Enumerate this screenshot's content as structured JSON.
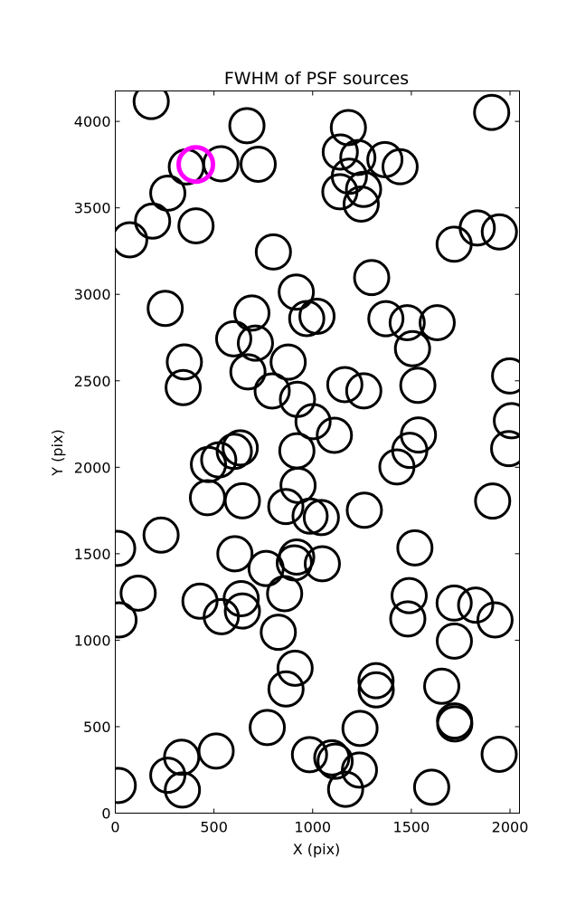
{
  "chart_data": {
    "type": "scatter",
    "title": "FWHM of PSF sources",
    "xlabel": "X (pix)",
    "ylabel": "Y (pix)",
    "xlim": [
      0,
      2048
    ],
    "ylim": [
      0,
      4176
    ],
    "xticks": [
      0,
      500,
      1000,
      1500,
      2000
    ],
    "yticks": [
      0,
      500,
      1000,
      1500,
      2000,
      2500,
      3000,
      3500,
      4000
    ],
    "marker": "open-circle",
    "marker_radius_data_units": 87,
    "series": [
      {
        "color": "#000000",
        "points": [
          [
            182,
            4115
          ],
          [
            667,
            3975
          ],
          [
            1181,
            3964
          ],
          [
            1907,
            4052
          ],
          [
            1140,
            3823
          ],
          [
            1229,
            3791
          ],
          [
            1366,
            3779
          ],
          [
            1443,
            3738
          ],
          [
            360,
            3737
          ],
          [
            535,
            3755
          ],
          [
            724,
            3752
          ],
          [
            1186,
            3683
          ],
          [
            1258,
            3607
          ],
          [
            1138,
            3593
          ],
          [
            1246,
            3522
          ],
          [
            266,
            3585
          ],
          [
            189,
            3424
          ],
          [
            409,
            3396
          ],
          [
            73,
            3315
          ],
          [
            801,
            3245
          ],
          [
            1834,
            3384
          ],
          [
            1946,
            3361
          ],
          [
            1717,
            3290
          ],
          [
            1299,
            3097
          ],
          [
            917,
            3013
          ],
          [
            253,
            2919
          ],
          [
            692,
            2892
          ],
          [
            970,
            2860
          ],
          [
            1022,
            2873
          ],
          [
            1371,
            2859
          ],
          [
            1479,
            2836
          ],
          [
            1631,
            2836
          ],
          [
            600,
            2743
          ],
          [
            710,
            2718
          ],
          [
            1506,
            2686
          ],
          [
            350,
            2609
          ],
          [
            876,
            2608
          ],
          [
            672,
            2552
          ],
          [
            1163,
            2478
          ],
          [
            1259,
            2442
          ],
          [
            1533,
            2474
          ],
          [
            1998,
            2528
          ],
          [
            344,
            2461
          ],
          [
            795,
            2441
          ],
          [
            923,
            2393
          ],
          [
            1002,
            2264
          ],
          [
            1110,
            2185
          ],
          [
            2007,
            2269
          ],
          [
            1536,
            2187
          ],
          [
            1492,
            2098
          ],
          [
            1993,
            2108
          ],
          [
            920,
            2095
          ],
          [
            633,
            2112
          ],
          [
            603,
            2092
          ],
          [
            524,
            2043
          ],
          [
            472,
            2016
          ],
          [
            1427,
            2002
          ],
          [
            926,
            1895
          ],
          [
            467,
            1824
          ],
          [
            644,
            1806
          ],
          [
            864,
            1773
          ],
          [
            987,
            1718
          ],
          [
            1044,
            1709
          ],
          [
            1262,
            1752
          ],
          [
            1912,
            1805
          ],
          [
            232,
            1608
          ],
          [
            12,
            1531
          ],
          [
            606,
            1500
          ],
          [
            1518,
            1534
          ],
          [
            764,
            1415
          ],
          [
            907,
            1447
          ],
          [
            919,
            1481
          ],
          [
            1049,
            1442
          ],
          [
            116,
            1272
          ],
          [
            429,
            1226
          ],
          [
            537,
            1136
          ],
          [
            638,
            1240
          ],
          [
            644,
            1169
          ],
          [
            858,
            1269
          ],
          [
            1489,
            1258
          ],
          [
            1482,
            1123
          ],
          [
            1717,
            1215
          ],
          [
            1826,
            1203
          ],
          [
            1924,
            1117
          ],
          [
            19,
            1117
          ],
          [
            826,
            1046
          ],
          [
            1718,
            995
          ],
          [
            911,
            838
          ],
          [
            1321,
            766
          ],
          [
            1322,
            713
          ],
          [
            1654,
            734
          ],
          [
            865,
            718
          ],
          [
            770,
            495
          ],
          [
            1240,
            490
          ],
          [
            1719,
            533
          ],
          [
            1720,
            516
          ],
          [
            511,
            359
          ],
          [
            336,
            323
          ],
          [
            266,
            219
          ],
          [
            340,
            134
          ],
          [
            15,
            160
          ],
          [
            984,
            338
          ],
          [
            1097,
            320
          ],
          [
            1114,
            300
          ],
          [
            1237,
            249
          ],
          [
            1167,
            138
          ],
          [
            1603,
            150
          ],
          [
            1945,
            340
          ]
        ]
      },
      {
        "color": "#ff00ff",
        "points": [
          [
            408,
            3751
          ]
        ]
      }
    ]
  }
}
